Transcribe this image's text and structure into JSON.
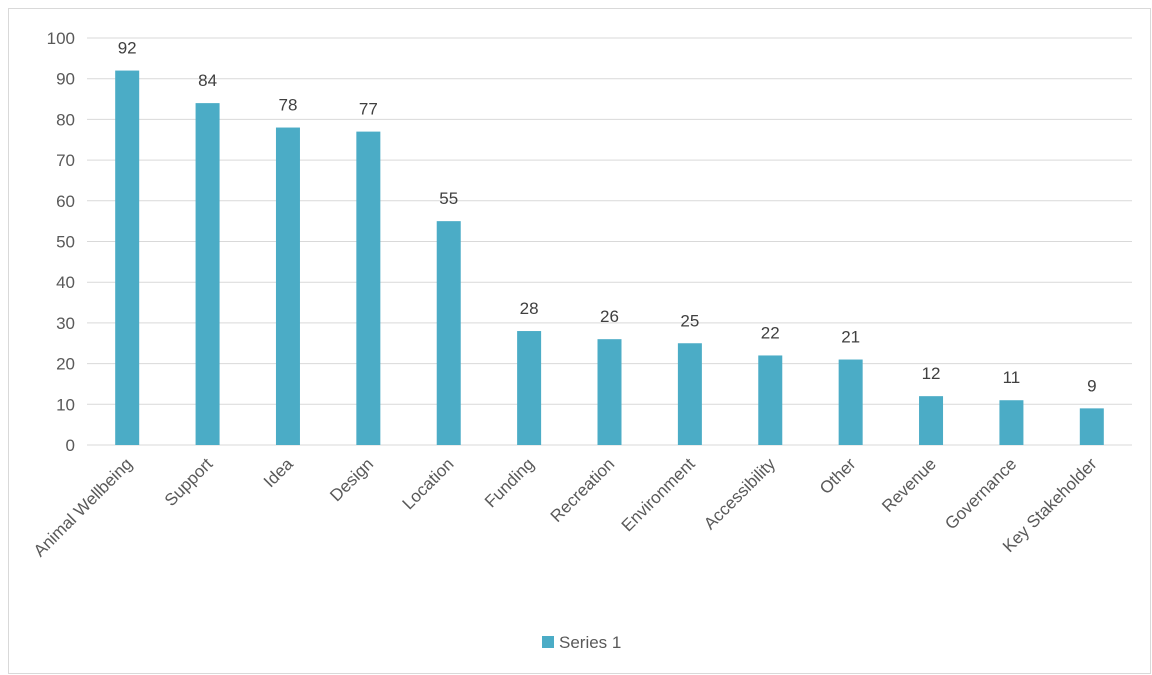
{
  "chart_data": {
    "type": "bar",
    "title": "",
    "xlabel": "",
    "ylabel": "",
    "categories": [
      "Animal Wellbeing",
      "Support",
      "Idea",
      "Design",
      "Location",
      "Funding",
      "Recreation",
      "Environment",
      "Accessibility",
      "Other",
      "Revenue",
      "Governance",
      "Key Stakeholder"
    ],
    "series": [
      {
        "name": "Series 1",
        "values": [
          92,
          84,
          78,
          77,
          55,
          28,
          26,
          25,
          22,
          21,
          12,
          11,
          9
        ],
        "color": "#4BACC6"
      }
    ],
    "ylim": [
      0,
      100
    ],
    "yticks": [
      0,
      10,
      20,
      30,
      40,
      50,
      60,
      70,
      80,
      90,
      100
    ],
    "grid": true,
    "gridColor": "#d9d9d9",
    "data_labels": true,
    "legend_position": "bottom"
  }
}
